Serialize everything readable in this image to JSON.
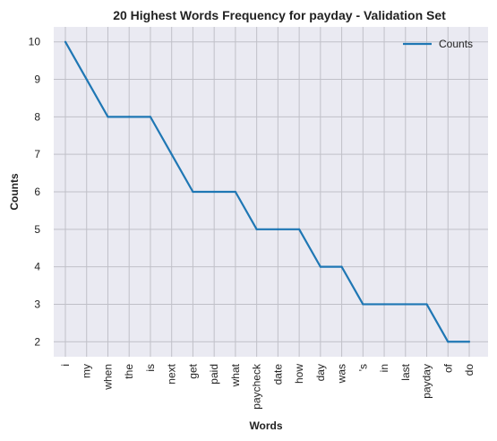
{
  "chart_data": {
    "type": "line",
    "title": "20 Highest Words Frequency for payday - Validation Set",
    "xlabel": "Words",
    "ylabel": "Counts",
    "categories": [
      "i",
      "my",
      "when",
      "the",
      "is",
      "next",
      "get",
      "paid",
      "what",
      "paycheck",
      "date",
      "how",
      "day",
      "was",
      "'s",
      "in",
      "last",
      "payday",
      "of",
      "do"
    ],
    "series": [
      {
        "name": "Counts",
        "values": [
          10,
          9,
          8,
          8,
          8,
          7,
          6,
          6,
          6,
          5,
          5,
          5,
          4,
          4,
          3,
          3,
          3,
          3,
          2,
          2
        ]
      }
    ],
    "ylim": [
      1.6,
      10.4
    ],
    "yticks": [
      2,
      3,
      4,
      5,
      6,
      7,
      8,
      9,
      10
    ],
    "grid": true,
    "legend": "top-right",
    "colors": {
      "line": "#1f77b4",
      "plot_bg": "#eaeaf2",
      "grid": "#c0c0c8"
    }
  }
}
